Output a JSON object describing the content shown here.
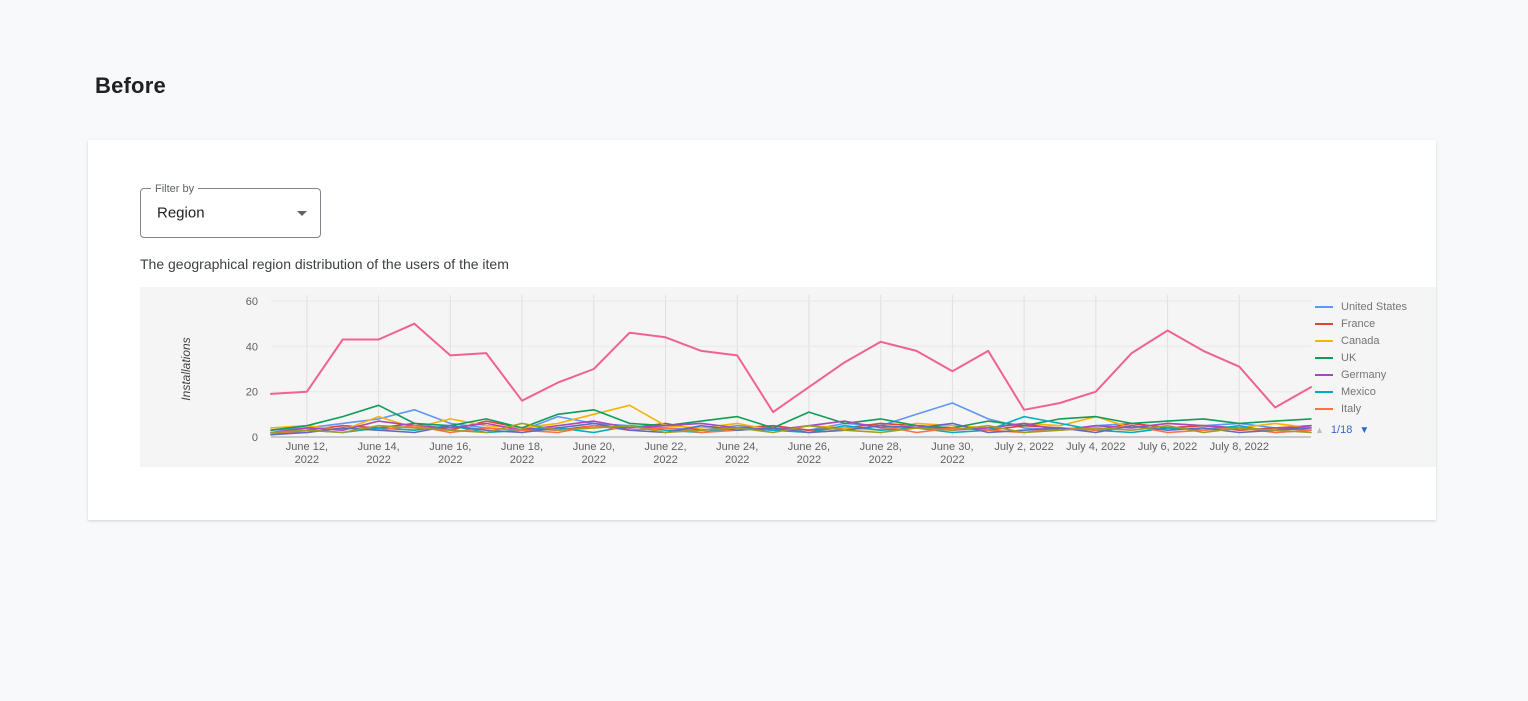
{
  "page": {
    "title": "Before"
  },
  "filter": {
    "label": "Filter by",
    "value": "Region"
  },
  "description": "The geographical region distribution of the users of the item",
  "chart_data": {
    "type": "line",
    "ylabel": "Installations",
    "ylim": [
      0,
      60
    ],
    "y_ticks": [
      0,
      20,
      40,
      60
    ],
    "grid": true,
    "legend_position": "right",
    "x": [
      "June 11, 2022",
      "June 12, 2022",
      "June 13, 2022",
      "June 14, 2022",
      "June 15, 2022",
      "June 16, 2022",
      "June 17, 2022",
      "June 18, 2022",
      "June 19, 2022",
      "June 20, 2022",
      "June 21, 2022",
      "June 22, 2022",
      "June 23, 2022",
      "June 24, 2022",
      "June 25, 2022",
      "June 26, 2022",
      "June 27, 2022",
      "June 28, 2022",
      "June 29, 2022",
      "June 30, 2022",
      "July 1, 2022",
      "July 2, 2022",
      "July 3, 2022",
      "July 4, 2022",
      "July 5, 2022",
      "July 6, 2022",
      "July 7, 2022",
      "July 8, 2022",
      "July 9, 2022",
      "July 10, 2022"
    ],
    "x_tick_indices": [
      1,
      3,
      5,
      7,
      9,
      11,
      13,
      15,
      17,
      19,
      21,
      23,
      25,
      27
    ],
    "x_tick_labels": [
      [
        "June 12,",
        "2022"
      ],
      [
        "June 14,",
        "2022"
      ],
      [
        "June 16,",
        "2022"
      ],
      [
        "June 18,",
        "2022"
      ],
      [
        "June 20,",
        "2022"
      ],
      [
        "June 22,",
        "2022"
      ],
      [
        "June 24,",
        "2022"
      ],
      [
        "June 26,",
        "2022"
      ],
      [
        "June 28,",
        "2022"
      ],
      [
        "June 30,",
        "2022"
      ],
      [
        "July 2, 2022"
      ],
      [
        "July 4, 2022"
      ],
      [
        "July 6, 2022"
      ],
      [
        "July 8, 2022"
      ]
    ],
    "series": [
      {
        "name": "United States",
        "color": "#5e97f6",
        "values": [
          3,
          4,
          6,
          8,
          12,
          6,
          4,
          3,
          9,
          6,
          5,
          4,
          3,
          5,
          4,
          3,
          6,
          5,
          10,
          15,
          8,
          4,
          3,
          5,
          6,
          4,
          5,
          6,
          4,
          3
        ]
      },
      {
        "name": "France",
        "color": "#db4437",
        "values": [
          2,
          3,
          5,
          4,
          6,
          3,
          7,
          4,
          3,
          5,
          4,
          6,
          3,
          4,
          5,
          3,
          4,
          6,
          5,
          4,
          3,
          5,
          4,
          3,
          6,
          4,
          5,
          3,
          4,
          5
        ]
      },
      {
        "name": "Canada",
        "color": "#f4b400",
        "values": [
          4,
          5,
          3,
          9,
          4,
          8,
          5,
          4,
          6,
          10,
          14,
          5,
          4,
          6,
          3,
          5,
          4,
          3,
          6,
          5,
          4,
          6,
          5,
          9,
          4,
          6,
          5,
          4,
          6,
          4
        ]
      },
      {
        "name": "UK",
        "color": "#0f9d58",
        "values": [
          3,
          5,
          9,
          14,
          6,
          5,
          8,
          4,
          10,
          12,
          6,
          5,
          7,
          9,
          4,
          11,
          6,
          8,
          5,
          4,
          7,
          5,
          8,
          9,
          6,
          7,
          8,
          6,
          7,
          8
        ]
      },
      {
        "name": "Germany",
        "color": "#ab47bc",
        "values": [
          2,
          4,
          3,
          7,
          5,
          4,
          6,
          3,
          5,
          7,
          4,
          5,
          6,
          4,
          3,
          5,
          7,
          4,
          5,
          3,
          4,
          6,
          3,
          5,
          4,
          6,
          5,
          4,
          3,
          5
        ]
      },
      {
        "name": "Mexico",
        "color": "#00acc1",
        "values": [
          1,
          3,
          2,
          4,
          3,
          5,
          2,
          3,
          4,
          2,
          5,
          3,
          2,
          4,
          3,
          2,
          5,
          3,
          4,
          2,
          3,
          9,
          6,
          3,
          2,
          4,
          3,
          5,
          2,
          3
        ]
      },
      {
        "name": "Italy",
        "color": "#ff7043",
        "values": [
          2,
          2,
          4,
          3,
          5,
          2,
          4,
          3,
          2,
          5,
          3,
          4,
          2,
          3,
          4,
          2,
          3,
          5,
          2,
          4,
          3,
          2,
          4,
          3,
          5,
          2,
          3,
          4,
          2,
          3
        ]
      },
      {
        "name": "",
        "color": "#5c6bc0",
        "values": [
          1,
          2,
          4,
          3,
          2,
          5,
          3,
          2,
          4,
          6,
          3,
          2,
          5,
          3,
          4,
          2,
          3,
          5,
          4,
          6,
          2,
          3,
          4,
          2,
          5,
          3,
          4,
          2,
          3,
          4
        ]
      },
      {
        "name": "",
        "color": "#9e9d24",
        "values": [
          2,
          3,
          2,
          5,
          4,
          3,
          2,
          6,
          3,
          4,
          5,
          2,
          3,
          4,
          2,
          5,
          3,
          2,
          4,
          3,
          5,
          2,
          3,
          4,
          3,
          5,
          2,
          4,
          3,
          2
        ]
      },
      {
        "name": "",
        "color": "#f06292",
        "emphasis": true,
        "values": [
          19,
          20,
          43,
          43,
          50,
          36,
          37,
          16,
          24,
          30,
          46,
          44,
          38,
          36,
          11,
          22,
          33,
          42,
          38,
          29,
          38,
          12,
          15,
          20,
          37,
          47,
          38,
          31,
          13,
          22
        ]
      }
    ],
    "legend": {
      "entries": [
        {
          "label": "United States",
          "color": "#5e97f6"
        },
        {
          "label": "France",
          "color": "#db4437"
        },
        {
          "label": "Canada",
          "color": "#f4b400"
        },
        {
          "label": "UK",
          "color": "#0f9d58"
        },
        {
          "label": "Germany",
          "color": "#ab47bc"
        },
        {
          "label": "Mexico",
          "color": "#00acc1"
        },
        {
          "label": "Italy",
          "color": "#ff7043"
        }
      ],
      "page_indicator": "1/18",
      "prev_icon": "legend-prev-icon",
      "next_icon": "legend-next-icon"
    }
  }
}
